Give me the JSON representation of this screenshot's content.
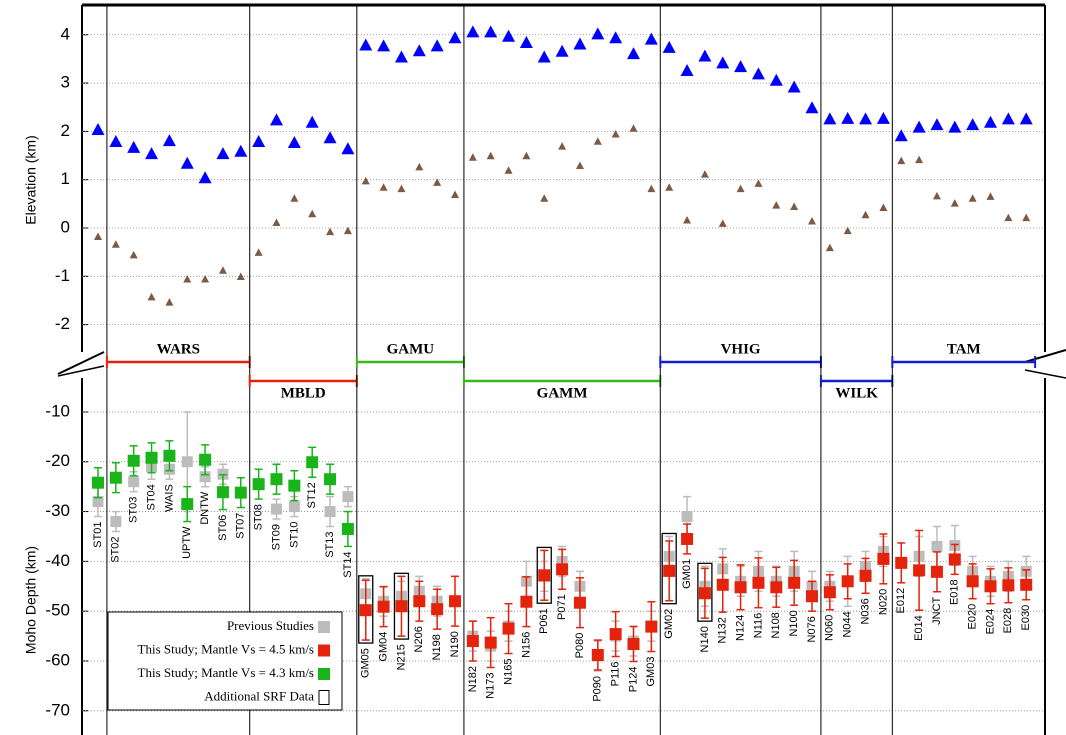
{
  "chart_data": [
    {
      "type": "scatter",
      "ylabel": "Elevation (km)",
      "ylim": [
        -2.6,
        4.6
      ],
      "yticks": [
        -2,
        -1,
        0,
        1,
        2,
        3,
        4
      ],
      "grid": true,
      "series": [
        {
          "color": "#0000ff",
          "values": [
            2.05,
            1.8,
            1.68,
            1.55,
            1.82,
            1.35,
            1.05,
            1.55,
            1.6,
            1.8,
            2.25,
            1.78,
            2.2,
            1.88,
            1.65,
            3.8,
            3.78,
            3.55,
            3.68,
            3.78,
            3.95,
            4.07,
            4.07,
            3.98,
            3.85,
            3.55,
            3.67,
            3.82,
            4.03,
            3.95,
            3.62,
            3.92,
            3.75,
            3.27,
            3.57,
            3.43,
            3.35,
            3.2,
            3.07,
            2.93,
            2.5,
            2.27,
            2.28,
            2.27,
            2.28,
            1.92,
            2.1,
            2.15,
            2.1,
            2.15,
            2.2,
            2.27,
            2.27
          ]
        },
        {
          "color": "#7b5b45",
          "values": [
            -0.17,
            -0.33,
            -0.55,
            -1.42,
            -1.53,
            -1.05,
            -1.05,
            -0.87,
            -1.0,
            -0.5,
            0.12,
            0.62,
            0.3,
            -0.07,
            -0.05,
            0.98,
            0.85,
            0.82,
            1.27,
            0.95,
            0.7,
            1.47,
            1.5,
            1.2,
            1.5,
            0.62,
            1.7,
            1.3,
            1.8,
            1.95,
            2.07,
            0.82,
            0.85,
            0.17,
            1.12,
            0.1,
            0.82,
            0.93,
            0.48,
            0.45,
            0.15,
            -0.4,
            -0.05,
            0.28,
            0.43,
            1.4,
            1.42,
            0.67,
            0.52,
            0.62,
            0.66,
            0.22,
            0.22
          ]
        }
      ]
    },
    {
      "type": "errorbar",
      "ylabel": "Moho Depth (km)",
      "ylim": [
        -74.8,
        -2.6
      ],
      "yticks": [
        -70,
        -60,
        -50,
        -40,
        -30,
        -20,
        -10
      ],
      "grid": true,
      "legend": "lower left",
      "categories": [
        "ST01",
        "ST02",
        "ST03",
        "ST04",
        "WAIS",
        "UPTW",
        "DNTW",
        "ST06",
        "ST07",
        "ST08",
        "ST09",
        "ST10",
        "ST12",
        "ST13",
        "ST14",
        "GM05",
        "GM04",
        "N215",
        "N206",
        "N198",
        "N190",
        "N182",
        "N173",
        "N165",
        "N156",
        "P061",
        "P071",
        "P080",
        "P090",
        "P116",
        "P124",
        "GM03",
        "GM02",
        "GM01",
        "N140",
        "N132",
        "N124",
        "N116",
        "N108",
        "N100",
        "N076",
        "N060",
        "N044",
        "N036",
        "N020",
        "E012",
        "E014",
        "JNCT",
        "E018",
        "E020",
        "E024",
        "E028",
        "E030"
      ],
      "series": [
        {
          "name": "Previous Studies",
          "color": "#bcbcbc",
          "values": [
            -28,
            -32,
            -24,
            -21,
            -21.5,
            -20,
            -23,
            -22.5,
            null,
            null,
            -29.5,
            -29,
            null,
            -30,
            -27,
            -46.5,
            -48,
            -47,
            -46,
            -48,
            null,
            -55,
            -57,
            -53,
            -44,
            -43,
            -40,
            -45,
            -59,
            -55,
            -56,
            -53,
            -39,
            -31,
            -45,
            -41.5,
            -44,
            -42,
            -44,
            -42,
            -45,
            -45,
            -44,
            -41,
            -38,
            null,
            -39,
            -37,
            -36.8,
            -42,
            -44,
            -43,
            -42
          ],
          "errors": [
            3,
            2,
            2,
            2.5,
            2,
            10,
            2,
            2,
            null,
            null,
            2,
            2,
            null,
            3,
            2,
            3,
            3,
            3,
            3,
            3,
            null,
            3,
            3,
            3,
            4,
            3,
            3,
            3,
            3,
            3,
            3,
            3,
            4,
            4,
            4,
            4,
            3,
            4,
            3,
            4,
            3,
            3,
            5,
            3,
            3,
            null,
            4,
            4,
            4,
            3,
            3,
            3,
            3
          ]
        },
        {
          "name": "This Study; Mantle Vs = 4.5 km/s",
          "color": "#e3230b",
          "values": [
            null,
            null,
            null,
            null,
            null,
            null,
            null,
            null,
            null,
            null,
            null,
            null,
            null,
            null,
            null,
            -49.8,
            -49.1,
            -49.0,
            -48.0,
            -49.6,
            -48.0,
            -56,
            -56.3,
            -53.5,
            -48.1,
            -42.8,
            -41.6,
            -48.3,
            -58.8,
            -54.6,
            -56.6,
            -53.1,
            -41.9,
            -35.5,
            -46.4,
            -44.7,
            -45.2,
            -44.3,
            -45.2,
            -44.3,
            -47.0,
            -46.2,
            -44.0,
            -42.9,
            -39.5,
            -40.3,
            -41.8,
            -42.1,
            -39.6,
            -44.0,
            -45.0,
            -44.8,
            -44.7
          ],
          "errors": [
            null,
            null,
            null,
            null,
            null,
            null,
            null,
            null,
            null,
            null,
            null,
            null,
            null,
            null,
            null,
            6,
            4,
            6,
            4,
            4,
            5,
            4,
            5,
            5,
            5,
            5,
            4,
            5,
            3,
            4.5,
            3.5,
            5,
            6,
            3,
            5,
            5.5,
            4.5,
            5,
            4,
            4.5,
            3,
            3.5,
            3.5,
            3.5,
            5,
            4,
            8,
            4,
            3,
            3.5,
            3.5,
            3.5,
            3
          ]
        },
        {
          "name": "This Study; Mantle Vs = 4.3 km/s",
          "color": "#19b41a",
          "values": [
            -24.2,
            -23.2,
            -19.8,
            -19.2,
            -18.8,
            -28.5,
            -19.6,
            -26.1,
            -26.2,
            -24.5,
            -23.5,
            -24.8,
            -20.1,
            -23.5,
            -33.5,
            null,
            null,
            null,
            null,
            null,
            null,
            null,
            null,
            null,
            null,
            null,
            null,
            null,
            null,
            null,
            null,
            null,
            null,
            null,
            null,
            null,
            null,
            null,
            null,
            null,
            null,
            null,
            null,
            null,
            null,
            null,
            null,
            null,
            null,
            null,
            null,
            null,
            null
          ],
          "errors": [
            3,
            3,
            3,
            3,
            3,
            3.5,
            3,
            3.5,
            3,
            3,
            3,
            3,
            3,
            3,
            3.5,
            null,
            null,
            null,
            null,
            null,
            null,
            null,
            null,
            null,
            null,
            null,
            null,
            null,
            null,
            null,
            null,
            null,
            null,
            null,
            null,
            null,
            null,
            null,
            null,
            null,
            null,
            null,
            null,
            null,
            null,
            null,
            null,
            null,
            null,
            null,
            null,
            null,
            null
          ]
        }
      ],
      "srf": {
        "name": "Additional SRF Data",
        "stations": [
          "GM05",
          "N215",
          "P061",
          "GM02",
          "N140"
        ]
      },
      "networks": [
        {
          "name": "WARS",
          "first": "ST02",
          "last": "ST07",
          "color": "#e3230b"
        },
        {
          "name": "MBLD",
          "first": "ST08",
          "last": "ST14",
          "color": "#e3230b"
        },
        {
          "name": "GAMU",
          "first": "GM05",
          "last": "N190",
          "color": "#3cb521"
        },
        {
          "name": "GAMM",
          "first": "N182",
          "last": "GM03",
          "color": "#3cb521"
        },
        {
          "name": "VHIG",
          "first": "GM02",
          "last": "N076",
          "color": "#1020c8"
        },
        {
          "name": "WILK",
          "first": "N060",
          "last": "N020",
          "color": "#1020c8"
        },
        {
          "name": "TAM",
          "first": "E012",
          "last": "E030",
          "color": "#1020c8"
        }
      ]
    }
  ]
}
